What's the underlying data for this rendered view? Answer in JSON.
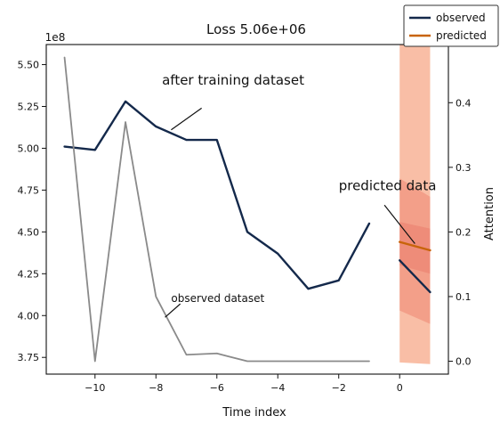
{
  "chart_data": {
    "type": "line",
    "title": "Loss 5.06e+06",
    "xlabel": "Time index",
    "ylabel_left": "",
    "y_multiplier": "1e8",
    "ylabel_right": "Attention",
    "xlim": [
      -11.6,
      1.6
    ],
    "ylim_left": [
      3.65,
      5.62
    ],
    "ylim_right": [
      -0.02,
      0.49
    ],
    "x_ticks": [
      -10,
      -8,
      -6,
      -4,
      -2,
      0
    ],
    "x_tick_labels": [
      "−10",
      "−8",
      "−6",
      "−4",
      "−2",
      "0"
    ],
    "y_ticks_left": [
      3.75,
      4.0,
      4.25,
      4.5,
      4.75,
      5.0,
      5.25,
      5.5
    ],
    "y_tick_labels_left": [
      "3.75",
      "4.00",
      "4.25",
      "4.50",
      "4.75",
      "5.00",
      "5.25",
      "5.50"
    ],
    "y_ticks_right": [
      0.0,
      0.1,
      0.2,
      0.3,
      0.4
    ],
    "y_tick_labels_right": [
      "0.0",
      "0.1",
      "0.2",
      "0.3",
      "0.4"
    ],
    "legend": {
      "placement": "top-right",
      "entries": [
        {
          "label": "observed",
          "color": "#14294b"
        },
        {
          "label": "predicted",
          "color": "#c8640a"
        }
      ]
    },
    "series": [
      {
        "name": "observed",
        "color": "#14294b",
        "axis": "left",
        "x": [
          -11,
          -10,
          -9,
          -8,
          -7,
          -6,
          -5,
          -4,
          -3,
          -2,
          -1
        ],
        "values": [
          5.01,
          4.99,
          5.28,
          5.13,
          5.05,
          5.05,
          4.5,
          4.37,
          4.16,
          4.21,
          4.55
        ]
      },
      {
        "name": "observed (forecast window)",
        "color": "#14294b",
        "axis": "left",
        "x": [
          0,
          1
        ],
        "values": [
          4.33,
          4.14
        ]
      },
      {
        "name": "predicted",
        "color": "#c8640a",
        "axis": "left",
        "x": [
          0,
          1
        ],
        "values": [
          4.44,
          4.39
        ]
      },
      {
        "name": "attention",
        "color": "#8a8a8a",
        "axis": "right",
        "x": [
          -11,
          -10,
          -9,
          -8,
          -7,
          -6,
          -5,
          -4,
          -3,
          -2,
          -1
        ],
        "values": [
          0.47,
          0.0,
          0.37,
          0.1,
          0.01,
          0.012,
          0.0,
          0.0,
          0.0,
          0.0,
          0.0
        ]
      }
    ],
    "bands": [
      {
        "x": [
          0,
          1
        ],
        "upper": [
          5.62,
          5.62
        ],
        "lower": [
          3.72,
          3.71
        ],
        "color": "#f7a888",
        "opacity": 0.75
      },
      {
        "x": [
          0,
          1
        ],
        "upper": [
          4.82,
          4.71
        ],
        "lower": [
          4.03,
          3.95
        ],
        "color": "#ee7f6c",
        "opacity": 0.5
      },
      {
        "x": [
          0,
          1
        ],
        "upper": [
          4.56,
          4.52
        ],
        "lower": [
          4.3,
          4.25
        ],
        "color": "#e46b5b",
        "opacity": 0.35
      }
    ],
    "annotations": [
      {
        "text": "after training dataset",
        "x": -7.8,
        "y": 5.38,
        "arrow_to": [
          -7.5,
          5.11
        ]
      },
      {
        "text": "predicted data",
        "x": -2.0,
        "y": 4.75,
        "arrow_to": [
          0.5,
          4.43
        ]
      },
      {
        "text": "observed dataset",
        "x": -7.5,
        "y": 4.08,
        "arrow_to": [
          -7.7,
          3.99
        ]
      }
    ]
  }
}
